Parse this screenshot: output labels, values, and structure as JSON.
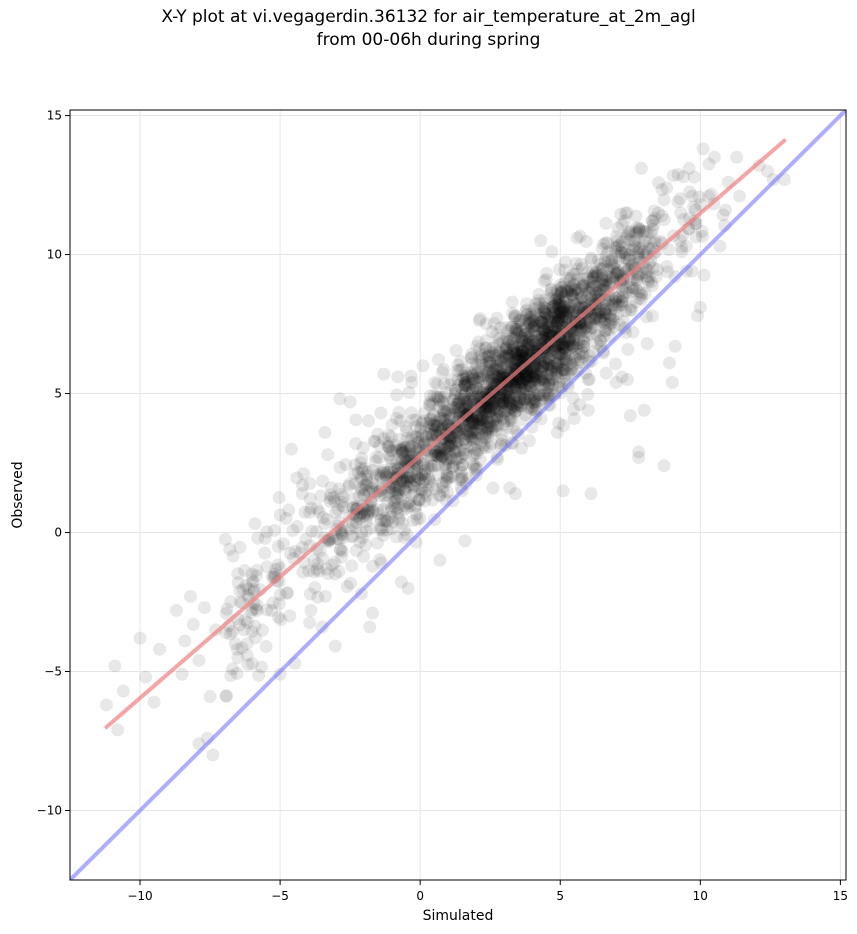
{
  "chart_data": {
    "type": "scatter",
    "title": "X-Y plot at vi.vegagerdin.36132 for air_temperature_at_2m_agl",
    "subtitle": "from 00-06h during spring",
    "xlabel": "Simulated",
    "ylabel": "Observed",
    "xlim": [
      -12.5,
      15.2
    ],
    "ylim": [
      -12.5,
      15.2
    ],
    "xticks": [
      -10,
      -5,
      0,
      5,
      10,
      15
    ],
    "yticks": [
      -10,
      -5,
      0,
      5,
      10,
      15
    ],
    "xtick_labels": [
      "−10",
      "−5",
      "0",
      "5",
      "10",
      "15"
    ],
    "ytick_labels": [
      "−10",
      "−5",
      "0",
      "5",
      "10",
      "15"
    ],
    "grid": true,
    "point_color": "#000000",
    "identity_line": {
      "from": [
        -12.5,
        -12.5
      ],
      "to": [
        15.2,
        15.2
      ],
      "color": "#6b6bff"
    },
    "fit_line": {
      "from": [
        -11.2,
        -7.0
      ],
      "to": [
        13.0,
        14.1
      ],
      "color": "#f08080"
    },
    "outliers": [
      [
        -11.2,
        -6.2
      ],
      [
        -10.9,
        -4.8
      ],
      [
        -10.8,
        -7.1
      ],
      [
        -10.6,
        -5.7
      ],
      [
        -10.0,
        -3.8
      ],
      [
        -9.8,
        -5.2
      ],
      [
        -9.5,
        -6.1
      ],
      [
        -9.3,
        -4.2
      ],
      [
        -8.7,
        -2.8
      ],
      [
        -8.5,
        -5.1
      ],
      [
        -8.4,
        -3.9
      ],
      [
        -8.2,
        -2.3
      ],
      [
        -8.1,
        -3.3
      ],
      [
        -7.9,
        -4.6
      ],
      [
        -7.9,
        -7.6
      ],
      [
        -7.7,
        -2.7
      ],
      [
        -7.6,
        -7.4
      ],
      [
        -7.5,
        -5.9
      ],
      [
        -7.4,
        -8.0
      ],
      [
        -7.3,
        -3.5
      ],
      [
        -6.8,
        -0.6
      ],
      [
        -6.5,
        -1.8
      ],
      [
        -5.8,
        -0.2
      ],
      [
        -5.5,
        -4.1
      ],
      [
        -5.0,
        -5.1
      ],
      [
        -4.6,
        3.0
      ],
      [
        -4.2,
        1.7
      ],
      [
        -3.9,
        -2.8
      ],
      [
        -3.5,
        -3.4
      ],
      [
        -3.4,
        3.6
      ],
      [
        -3.3,
        2.8
      ],
      [
        -2.9,
        -1.4
      ],
      [
        -2.8,
        1.1
      ],
      [
        -2.5,
        4.7
      ],
      [
        -2.3,
        3.2
      ],
      [
        -2.1,
        -2.2
      ],
      [
        -1.9,
        1.9
      ],
      [
        -1.8,
        -3.4
      ],
      [
        -1.7,
        -2.9
      ],
      [
        -1.4,
        4.3
      ],
      [
        -1.3,
        5.7
      ],
      [
        -0.8,
        5.6
      ],
      [
        -0.3,
        5.4
      ],
      [
        0.1,
        6.0
      ],
      [
        0.7,
        -1.0
      ],
      [
        1.5,
        1.5
      ],
      [
        1.6,
        -0.3
      ],
      [
        2.6,
        1.6
      ],
      [
        3.2,
        1.6
      ],
      [
        3.4,
        1.4
      ],
      [
        3.9,
        3.3
      ],
      [
        4.3,
        10.5
      ],
      [
        4.5,
        9.1
      ],
      [
        4.6,
        6.3
      ],
      [
        4.7,
        10.1
      ],
      [
        4.8,
        6.1
      ],
      [
        4.9,
        3.6
      ],
      [
        5.0,
        8.9
      ],
      [
        5.1,
        1.5
      ],
      [
        5.5,
        4.1
      ],
      [
        5.6,
        10.6
      ],
      [
        5.7,
        4.6
      ],
      [
        6.0,
        4.4
      ],
      [
        6.1,
        1.4
      ],
      [
        6.5,
        10.2
      ],
      [
        7.0,
        5.4
      ],
      [
        7.2,
        5.6
      ],
      [
        7.4,
        5.5
      ],
      [
        7.5,
        4.2
      ],
      [
        7.8,
        2.7
      ],
      [
        7.8,
        2.9
      ],
      [
        7.9,
        13.1
      ],
      [
        8.0,
        4.4
      ],
      [
        8.1,
        6.8
      ],
      [
        8.4,
        10.5
      ],
      [
        8.5,
        11.5
      ],
      [
        8.7,
        2.4
      ],
      [
        8.9,
        6.1
      ],
      [
        9.0,
        5.4
      ],
      [
        9.1,
        6.7
      ],
      [
        9.2,
        11.9
      ],
      [
        9.3,
        11.5
      ],
      [
        9.5,
        10.3
      ],
      [
        9.7,
        9.4
      ],
      [
        9.9,
        7.8
      ],
      [
        10.0,
        8.1
      ],
      [
        10.1,
        13.8
      ],
      [
        10.3,
        12.1
      ],
      [
        10.5,
        13.5
      ],
      [
        10.7,
        10.3
      ],
      [
        10.9,
        11.6
      ],
      [
        11.0,
        12.6
      ],
      [
        11.3,
        13.5
      ],
      [
        11.4,
        12.1
      ],
      [
        12.1,
        13.2
      ],
      [
        12.4,
        13.0
      ],
      [
        12.6,
        12.7
      ],
      [
        13.0,
        12.7
      ],
      [
        9.4,
        12.8
      ],
      [
        8.8,
        12.4
      ],
      [
        9.6,
        13.1
      ]
    ]
  }
}
